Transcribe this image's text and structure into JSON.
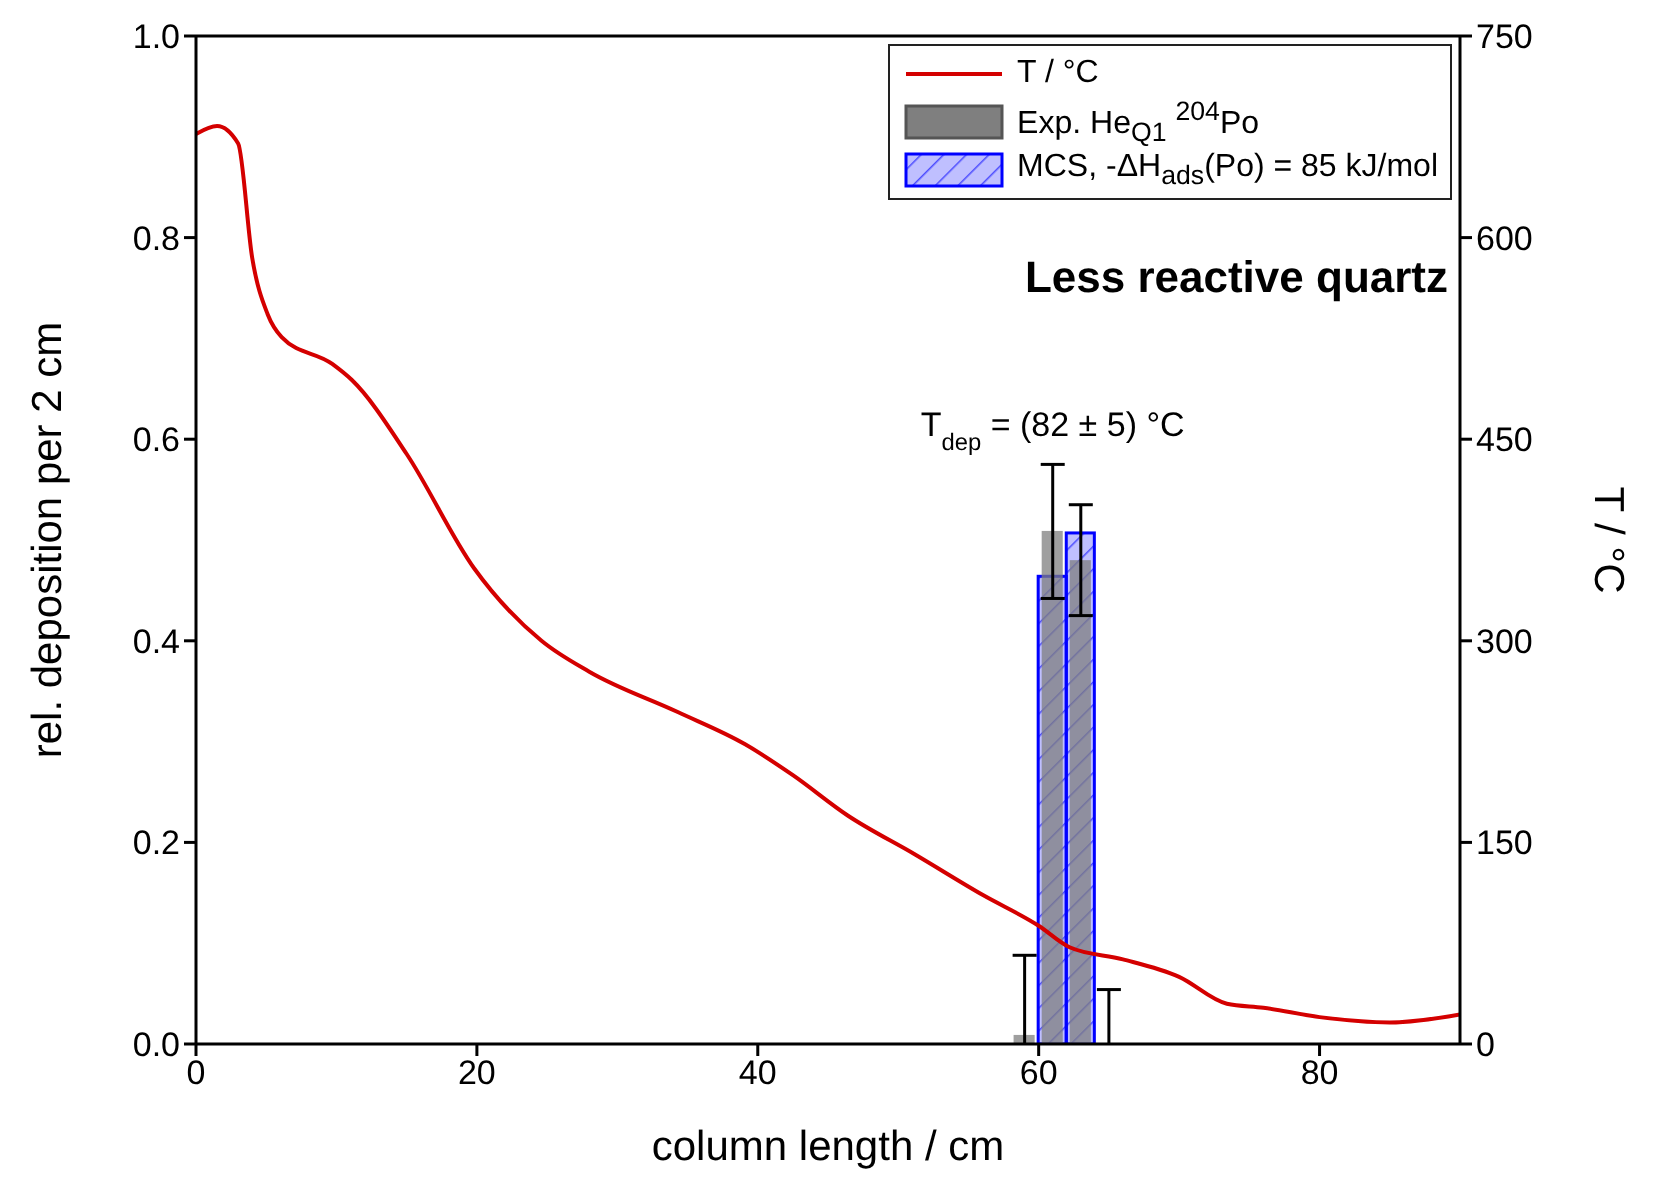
{
  "chart_data": {
    "type": "bar",
    "xlabel": "column length / cm",
    "ylabel": "rel. deposition per 2 cm",
    "y2label": "T / °C",
    "annotations": [
      "Less reactive quartz",
      {
        "text": "T$_{dep}$ = (82 ± 5) °C",
        "x": 61,
        "y": 0.575
      }
    ],
    "xlim": [
      0,
      90
    ],
    "xticks": [
      0,
      20,
      40,
      60,
      80
    ],
    "ylim": [
      0,
      1
    ],
    "yticks": [
      {
        "value": 0,
        "label": "0.0"
      },
      0.2,
      0.4,
      0.6,
      0.8,
      {
        "value": 1,
        "label": "1.0"
      }
    ],
    "y2lim": [
      0,
      750
    ],
    "y2ticks": [
      0,
      150,
      300,
      450,
      600,
      750
    ],
    "legend": "top right",
    "series": [
      {
        "name": "T / °C",
        "type": "line",
        "axis": "y2",
        "color": "#d40000",
        "x": [
          0,
          1.5,
          3,
          4,
          5.1,
          6.1,
          9.7,
          11.1,
          15,
          19.8,
          24.6,
          28,
          34.3,
          39.1,
          42.5,
          46.4,
          51.2,
          56,
          60,
          62.2,
          66,
          70,
          73.4,
          76,
          80,
          85,
          90
        ],
        "values": [
          677,
          683,
          670,
          585,
          543,
          526,
          506,
          494,
          439,
          354,
          300,
          277,
          247,
          223,
          200,
          170,
          141,
          111,
          88,
          72,
          63,
          50,
          30,
          27,
          20,
          16,
          22
        ]
      },
      {
        "name": "Exp. He$_{Q1}$ $^{204}$Po",
        "color": "#7f7f7f",
        "x": [
          59,
          61,
          63,
          65
        ],
        "values": [
          0.009,
          0.509,
          0.48,
          0
        ],
        "errors": [
          [
            0,
            0.088
          ],
          [
            0.442,
            0.575
          ],
          [
            0.425,
            0.535
          ],
          [
            0,
            0.054
          ]
        ]
      },
      {
        "name": "MCS, -ΔH$_{ads}$(Po) = 85 kJ/mol",
        "color": "#0000ff",
        "x": [
          61,
          63
        ],
        "values": [
          0.464,
          0.507
        ]
      }
    ]
  }
}
